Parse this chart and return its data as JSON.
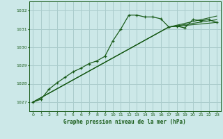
{
  "title": "Graphe pression niveau de la mer (hPa)",
  "bg_color": "#cce8e8",
  "grid_color": "#aacccc",
  "line_color": "#1a5c1a",
  "marker_color": "#1a5c1a",
  "xlim": [
    -0.5,
    23.5
  ],
  "ylim": [
    1026.5,
    1032.5
  ],
  "yticks": [
    1027,
    1028,
    1029,
    1030,
    1031,
    1032
  ],
  "xticks": [
    0,
    1,
    2,
    3,
    4,
    5,
    6,
    7,
    8,
    9,
    10,
    11,
    12,
    13,
    14,
    15,
    16,
    17,
    18,
    19,
    20,
    21,
    22,
    23
  ],
  "main_line_x": [
    0,
    1,
    2,
    3,
    4,
    5,
    6,
    7,
    8,
    9,
    10,
    11,
    12,
    13,
    14,
    15,
    16,
    17,
    18,
    19,
    20,
    21,
    22,
    23
  ],
  "main_line_y": [
    1027.0,
    1027.15,
    1027.7,
    1028.05,
    1028.35,
    1028.65,
    1028.85,
    1029.1,
    1029.25,
    1029.5,
    1030.35,
    1031.0,
    1031.75,
    1031.75,
    1031.65,
    1031.65,
    1031.55,
    1031.1,
    1031.15,
    1031.05,
    1031.5,
    1031.45,
    1031.5,
    1031.35
  ],
  "trend_lines": [
    {
      "x": [
        0,
        17,
        23
      ],
      "y": [
        1027.0,
        1031.1,
        1031.35
      ]
    },
    {
      "x": [
        0,
        17,
        23
      ],
      "y": [
        1027.0,
        1031.1,
        1031.5
      ]
    },
    {
      "x": [
        0,
        17,
        23
      ],
      "y": [
        1027.0,
        1031.1,
        1031.7
      ]
    }
  ]
}
